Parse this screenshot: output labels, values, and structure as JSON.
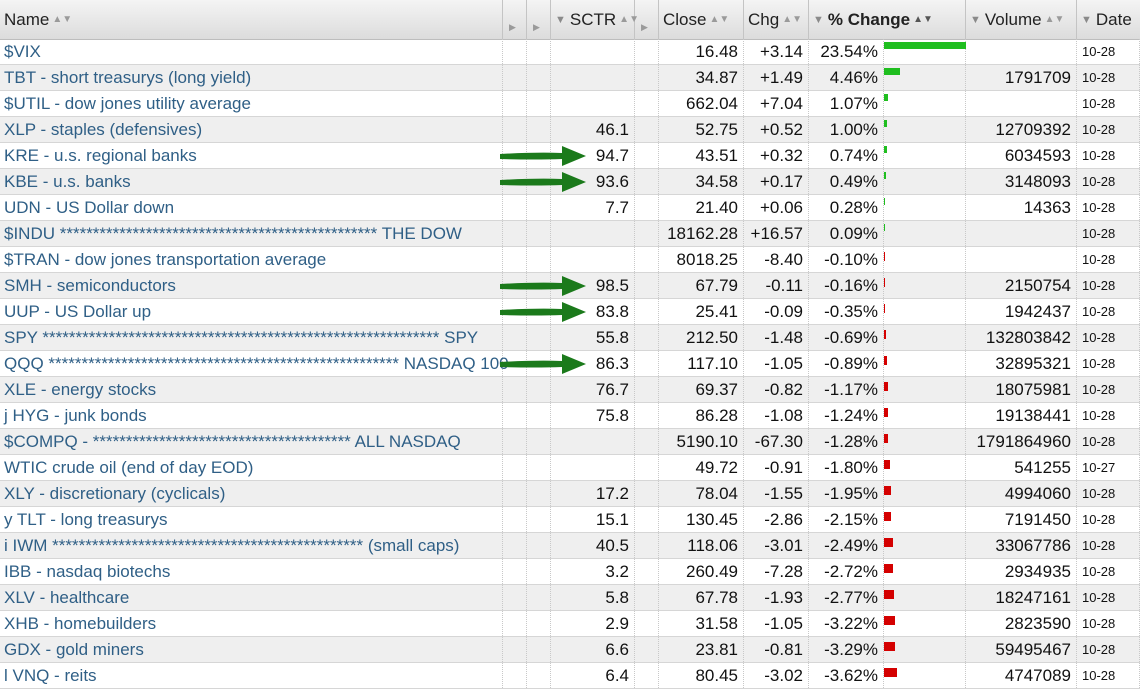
{
  "columns": {
    "name": "Name",
    "sctr": "SCTR",
    "close": "Close",
    "chg": "Chg",
    "pct_change": "% Change",
    "volume": "Volume",
    "date": "Date"
  },
  "colors": {
    "name_text": "#2f5f86",
    "bar_positive": "#1fbe1f",
    "bar_negative": "#d40000",
    "arrow": "#1b7a1b"
  },
  "rows": [
    {
      "name": "$VIX",
      "sctr": "",
      "close": "16.48",
      "chg": "+3.14",
      "pct": "23.54%",
      "pct_value": 23.54,
      "volume": "",
      "date": "10-28",
      "arrow": false
    },
    {
      "name": "TBT - short treasurys (long yield)",
      "sctr": "",
      "close": "34.87",
      "chg": "+1.49",
      "pct": "4.46%",
      "pct_value": 4.46,
      "volume": "1791709",
      "date": "10-28",
      "arrow": false
    },
    {
      "name": "$UTIL - dow jones utility average",
      "sctr": "",
      "close": "662.04",
      "chg": "+7.04",
      "pct": "1.07%",
      "pct_value": 1.07,
      "volume": "",
      "date": "10-28",
      "arrow": false
    },
    {
      "name": "XLP - staples (defensives)",
      "sctr": "46.1",
      "close": "52.75",
      "chg": "+0.52",
      "pct": "1.00%",
      "pct_value": 1.0,
      "volume": "12709392",
      "date": "10-28",
      "arrow": false
    },
    {
      "name": "KRE - u.s. regional banks",
      "sctr": "94.7",
      "close": "43.51",
      "chg": "+0.32",
      "pct": "0.74%",
      "pct_value": 0.74,
      "volume": "6034593",
      "date": "10-28",
      "arrow": true
    },
    {
      "name": "KBE - u.s. banks",
      "sctr": "93.6",
      "close": "34.58",
      "chg": "+0.17",
      "pct": "0.49%",
      "pct_value": 0.49,
      "volume": "3148093",
      "date": "10-28",
      "arrow": true
    },
    {
      "name": "UDN - US Dollar down",
      "sctr": "7.7",
      "close": "21.40",
      "chg": "+0.06",
      "pct": "0.28%",
      "pct_value": 0.28,
      "volume": "14363",
      "date": "10-28",
      "arrow": false
    },
    {
      "name": "$INDU ************************************************ THE DOW",
      "sctr": "",
      "close": "18162.28",
      "chg": "+16.57",
      "pct": "0.09%",
      "pct_value": 0.09,
      "volume": "",
      "date": "10-28",
      "arrow": false
    },
    {
      "name": "$TRAN - dow jones transportation average",
      "sctr": "",
      "close": "8018.25",
      "chg": "-8.40",
      "pct": "-0.10%",
      "pct_value": -0.1,
      "volume": "",
      "date": "10-28",
      "arrow": false
    },
    {
      "name": "SMH - semiconductors",
      "sctr": "98.5",
      "close": "67.79",
      "chg": "-0.11",
      "pct": "-0.16%",
      "pct_value": -0.16,
      "volume": "2150754",
      "date": "10-28",
      "arrow": true
    },
    {
      "name": "UUP - US Dollar up",
      "sctr": "83.8",
      "close": "25.41",
      "chg": "-0.09",
      "pct": "-0.35%",
      "pct_value": -0.35,
      "volume": "1942437",
      "date": "10-28",
      "arrow": true
    },
    {
      "name": "SPY ************************************************************ SPY",
      "sctr": "55.8",
      "close": "212.50",
      "chg": "-1.48",
      "pct": "-0.69%",
      "pct_value": -0.69,
      "volume": "132803842",
      "date": "10-28",
      "arrow": false
    },
    {
      "name": "QQQ ***************************************************** NASDAQ 100",
      "sctr": "86.3",
      "close": "117.10",
      "chg": "-1.05",
      "pct": "-0.89%",
      "pct_value": -0.89,
      "volume": "32895321",
      "date": "10-28",
      "arrow": true
    },
    {
      "name": "XLE - energy stocks",
      "sctr": "76.7",
      "close": "69.37",
      "chg": "-0.82",
      "pct": "-1.17%",
      "pct_value": -1.17,
      "volume": "18075981",
      "date": "10-28",
      "arrow": false
    },
    {
      "name": "j HYG - junk bonds",
      "sctr": "75.8",
      "close": "86.28",
      "chg": "-1.08",
      "pct": "-1.24%",
      "pct_value": -1.24,
      "volume": "19138441",
      "date": "10-28",
      "arrow": false
    },
    {
      "name": "$COMPQ - *************************************** ALL NASDAQ",
      "sctr": "",
      "close": "5190.10",
      "chg": "-67.30",
      "pct": "-1.28%",
      "pct_value": -1.28,
      "volume": "1791864960",
      "date": "10-28",
      "arrow": false
    },
    {
      "name": "WTIC crude oil (end of day EOD)",
      "sctr": "",
      "close": "49.72",
      "chg": "-0.91",
      "pct": "-1.80%",
      "pct_value": -1.8,
      "volume": "541255",
      "date": "10-27",
      "arrow": false
    },
    {
      "name": "XLY - discretionary (cyclicals)",
      "sctr": "17.2",
      "close": "78.04",
      "chg": "-1.55",
      "pct": "-1.95%",
      "pct_value": -1.95,
      "volume": "4994060",
      "date": "10-28",
      "arrow": false
    },
    {
      "name": "y TLT - long treasurys",
      "sctr": "15.1",
      "close": "130.45",
      "chg": "-2.86",
      "pct": "-2.15%",
      "pct_value": -2.15,
      "volume": "7191450",
      "date": "10-28",
      "arrow": false
    },
    {
      "name": "i IWM *********************************************** (small caps)",
      "sctr": "40.5",
      "close": "118.06",
      "chg": "-3.01",
      "pct": "-2.49%",
      "pct_value": -2.49,
      "volume": "33067786",
      "date": "10-28",
      "arrow": false
    },
    {
      "name": "IBB - nasdaq biotechs",
      "sctr": "3.2",
      "close": "260.49",
      "chg": "-7.28",
      "pct": "-2.72%",
      "pct_value": -2.72,
      "volume": "2934935",
      "date": "10-28",
      "arrow": false
    },
    {
      "name": "XLV - healthcare",
      "sctr": "5.8",
      "close": "67.78",
      "chg": "-1.93",
      "pct": "-2.77%",
      "pct_value": -2.77,
      "volume": "18247161",
      "date": "10-28",
      "arrow": false
    },
    {
      "name": "XHB - homebuilders",
      "sctr": "2.9",
      "close": "31.58",
      "chg": "-1.05",
      "pct": "-3.22%",
      "pct_value": -3.22,
      "volume": "2823590",
      "date": "10-28",
      "arrow": false
    },
    {
      "name": "GDX - gold miners",
      "sctr": "6.6",
      "close": "23.81",
      "chg": "-0.81",
      "pct": "-3.29%",
      "pct_value": -3.29,
      "volume": "59495467",
      "date": "10-28",
      "arrow": false
    },
    {
      "name": "l VNQ - reits",
      "sctr": "6.4",
      "close": "80.45",
      "chg": "-3.02",
      "pct": "-3.62%",
      "pct_value": -3.62,
      "volume": "4747089",
      "date": "10-28",
      "arrow": false
    }
  ]
}
